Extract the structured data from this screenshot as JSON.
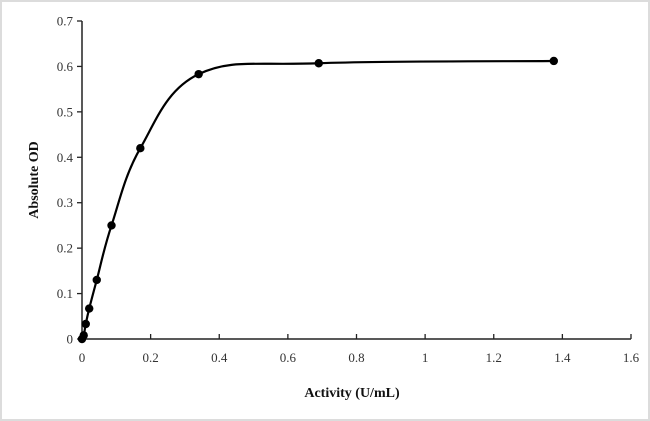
{
  "chart_data": {
    "type": "line",
    "title": "",
    "xlabel": "Activity (U/mL)",
    "ylabel": "Absolute OD",
    "xlim": [
      0,
      1.6
    ],
    "ylim": [
      0,
      0.7
    ],
    "x_ticks": [
      "0",
      "0.2",
      "0.4",
      "0.6",
      "0.8",
      "1",
      "1.2",
      "1.4",
      "1.6"
    ],
    "y_ticks": [
      "0",
      "0.1",
      "0.2",
      "0.3",
      "0.4",
      "0.5",
      "0.6",
      "0.7"
    ],
    "grid": false,
    "legend": null,
    "series": [
      {
        "name": "Absolute OD",
        "marker": "circle",
        "line": "smooth",
        "color": "#000000",
        "x": [
          0,
          0.005,
          0.011,
          0.021,
          0.043,
          0.086,
          0.17,
          0.34,
          0.69,
          1.375
        ],
        "y": [
          0,
          0.008,
          0.033,
          0.067,
          0.13,
          0.25,
          0.42,
          0.583,
          0.607,
          0.612
        ]
      }
    ]
  },
  "colors": {
    "line": "#000000",
    "axis": "#222222",
    "frame": "#dcdcdc"
  }
}
